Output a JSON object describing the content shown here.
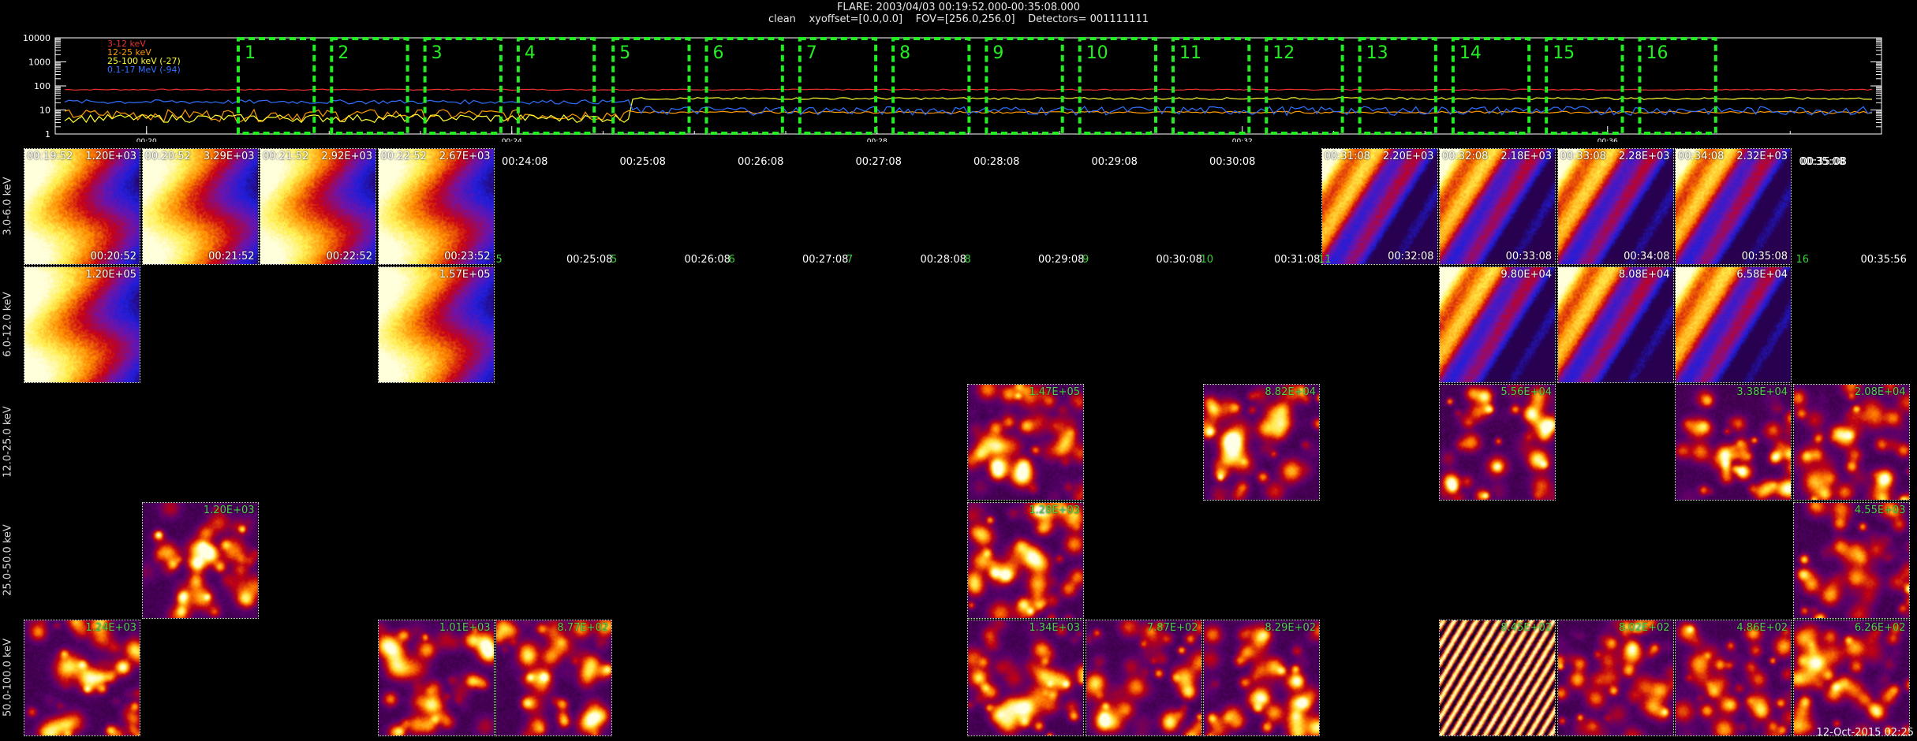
{
  "header": {
    "line1": "FLARE: 2003/04/03 00:19:52.000-00:35:08.000",
    "line2": "clean    xyoffset=[0.0,0.0]    FOV=[256.0,256.0]    Detectors= 001111111"
  },
  "colors": {
    "red": "#e83030",
    "orange": "#ff9a00",
    "yellow": "#ffff30",
    "blue": "#3070ff",
    "green": "#22ee22"
  },
  "lightcurve": {
    "yticks": [
      "10000",
      "1000",
      "100",
      "10",
      "1"
    ],
    "xticks": [
      "00:20",
      "00:24",
      "00:28",
      "00:32",
      "00:36"
    ],
    "legend": [
      {
        "text": "3-12 keV",
        "color": "#e83030"
      },
      {
        "text": "12-25 keV",
        "color": "#ff9a00"
      },
      {
        "text": "25-100 keV (-27)",
        "color": "#ffff30"
      },
      {
        "text": "0.1-17 MeV (-94)",
        "color": "#3070ff"
      }
    ],
    "intervals": [
      "1",
      "2",
      "3",
      "4",
      "5",
      "6",
      "7",
      "8",
      "9",
      "10",
      "11",
      "12",
      "13",
      "14",
      "15",
      "16"
    ]
  },
  "chart_data": [
    {
      "type": "line",
      "yscale": "log",
      "ylim": [
        1,
        10000
      ],
      "xlim": [
        "00:19:00",
        "00:39:00"
      ],
      "series": [
        {
          "name": "3-12 keV",
          "approx_level": 70
        },
        {
          "name": "12-25 keV",
          "approx_level": 8
        },
        {
          "name": "25-100 keV (-27)",
          "approx_level": 30
        },
        {
          "name": "0.1-17 MeV (-94)",
          "approx_level": 12
        }
      ]
    },
    {
      "type": "heatmap",
      "energy_bands": [
        "3.0-6.0 keV",
        "6.0-12.0 keV",
        "12.0-25.0 keV",
        "25.0-50.0 keV",
        "50.0-100.0 keV"
      ],
      "time_labels": [
        "00:19:52",
        "00:20:52",
        "00:21:52",
        "00:22:52",
        "00:23:52",
        "00:25:08",
        "00:26:08",
        "00:27:08",
        "00:28:08",
        "00:29:08",
        "00:30:08",
        "00:31:08",
        "00:32:08",
        "00:33:08",
        "00:34:08",
        "00:35:08",
        "00:35:56"
      ],
      "top_time_labels": [
        "00:19:52",
        "00:20:52",
        "00:21:52",
        "00:22:52",
        "00:24:08",
        "00:25:08",
        "00:26:08",
        "00:27:08",
        "00:28:08",
        "00:29:08",
        "00:30:08",
        "00:31:08",
        "00:32:08",
        "00:33:08",
        "00:34:08",
        "00:35:08"
      ],
      "rows": [
        [
          {
            "col": 0,
            "max": "1.20E+03"
          },
          {
            "col": 1,
            "max": "3.29E+03"
          },
          {
            "col": 2,
            "max": "2.92E+03"
          },
          {
            "col": 3,
            "max": "2.67E+03"
          },
          {
            "col": 11,
            "max": "2.20E+03"
          },
          {
            "col": 12,
            "max": "2.18E+03"
          },
          {
            "col": 13,
            "max": "2.28E+03"
          },
          {
            "col": 14,
            "max": "2.32E+03"
          }
        ],
        [
          {
            "col": 0,
            "max": "1.20E+05"
          },
          {
            "col": 3,
            "max": "1.57E+05"
          },
          {
            "col": 12,
            "max": "9.80E+04"
          },
          {
            "col": 13,
            "max": "8.08E+04"
          },
          {
            "col": 14,
            "max": "6.58E+04"
          }
        ],
        [
          {
            "col": 8,
            "max": "1.47E+05"
          },
          {
            "col": 10,
            "max": "8.82E+04"
          },
          {
            "col": 12,
            "max": "5.56E+04"
          },
          {
            "col": 14,
            "max": "3.38E+04"
          },
          {
            "col": 15,
            "max": "2.08E+04"
          }
        ],
        [
          {
            "col": 1,
            "max": "1.20E+03"
          },
          {
            "col": 8,
            "max": "1.28E+03"
          },
          {
            "col": 15,
            "max": "4.55E+03"
          }
        ],
        [
          {
            "col": 0,
            "max": "1.24E+03"
          },
          {
            "col": 3,
            "max": "1.01E+03"
          },
          {
            "col": 4,
            "max": "8.77E+02"
          },
          {
            "col": 8,
            "max": "1.34E+03"
          },
          {
            "col": 9,
            "max": "7.87E+02"
          },
          {
            "col": 10,
            "max": "8.29E+02"
          },
          {
            "col": 12,
            "max": "8.45E+02"
          },
          {
            "col": 13,
            "max": "8.02E+02"
          },
          {
            "col": 14,
            "max": "4.86E+02"
          },
          {
            "col": 15,
            "max": "6.26E+02"
          }
        ]
      ]
    }
  ],
  "footer": {
    "timestamp": "12-Oct-2015 02:25"
  }
}
